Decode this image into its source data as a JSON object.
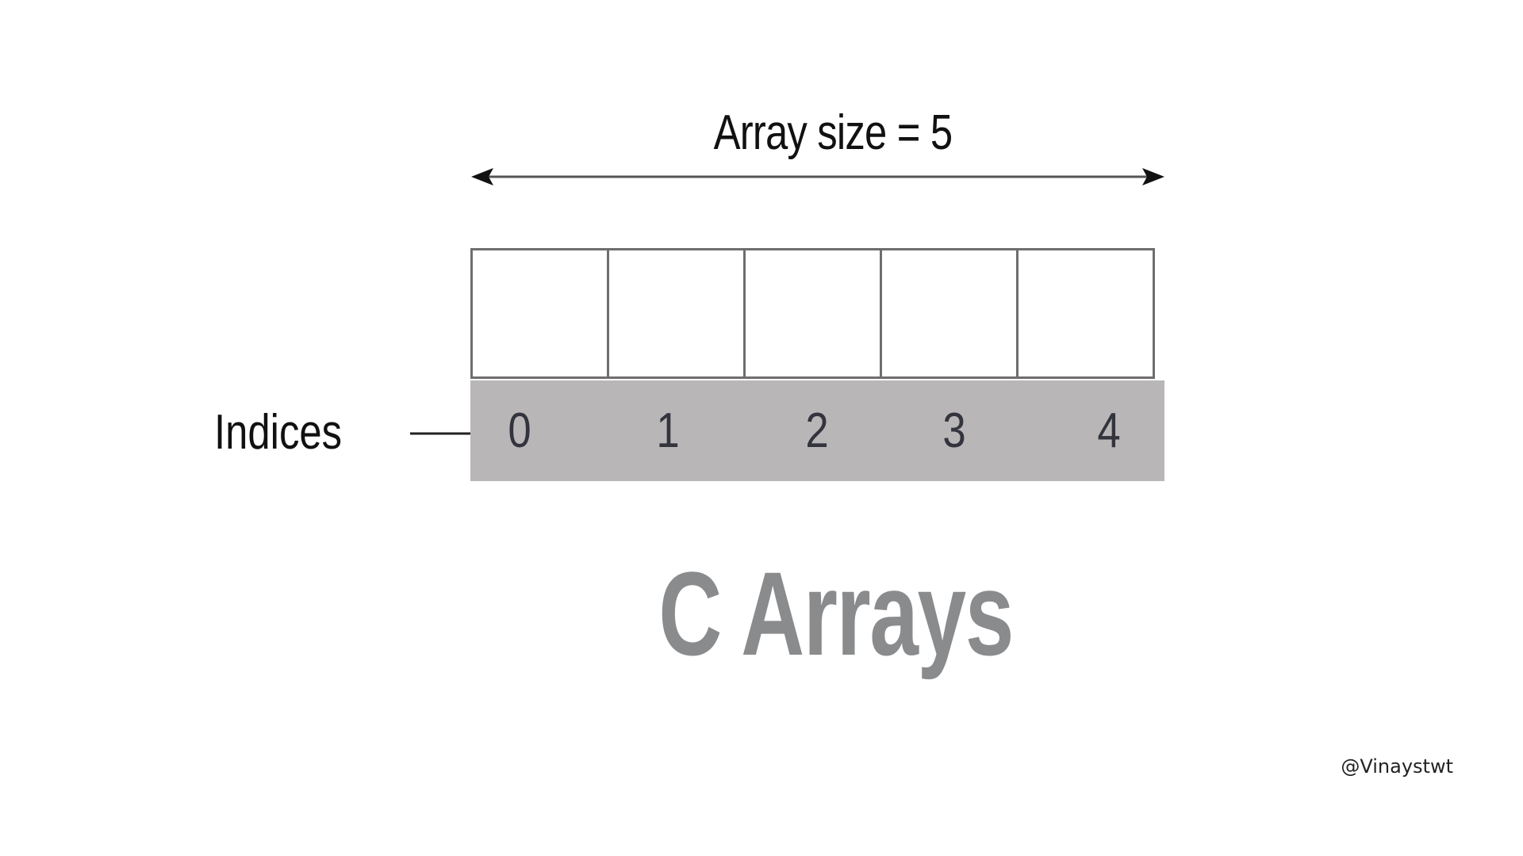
{
  "diagram": {
    "size_label": "Array size = 5",
    "indices_label": "Indices",
    "indices": [
      "0",
      "1",
      "2",
      "3",
      "4"
    ],
    "title": "C Arrays",
    "handle": "@Vinaystwt"
  },
  "colors": {
    "strip": "#b9b6b7",
    "cell_border": "#6e6e6e",
    "title": "#8a8b8d",
    "index_text": "#33343d"
  }
}
